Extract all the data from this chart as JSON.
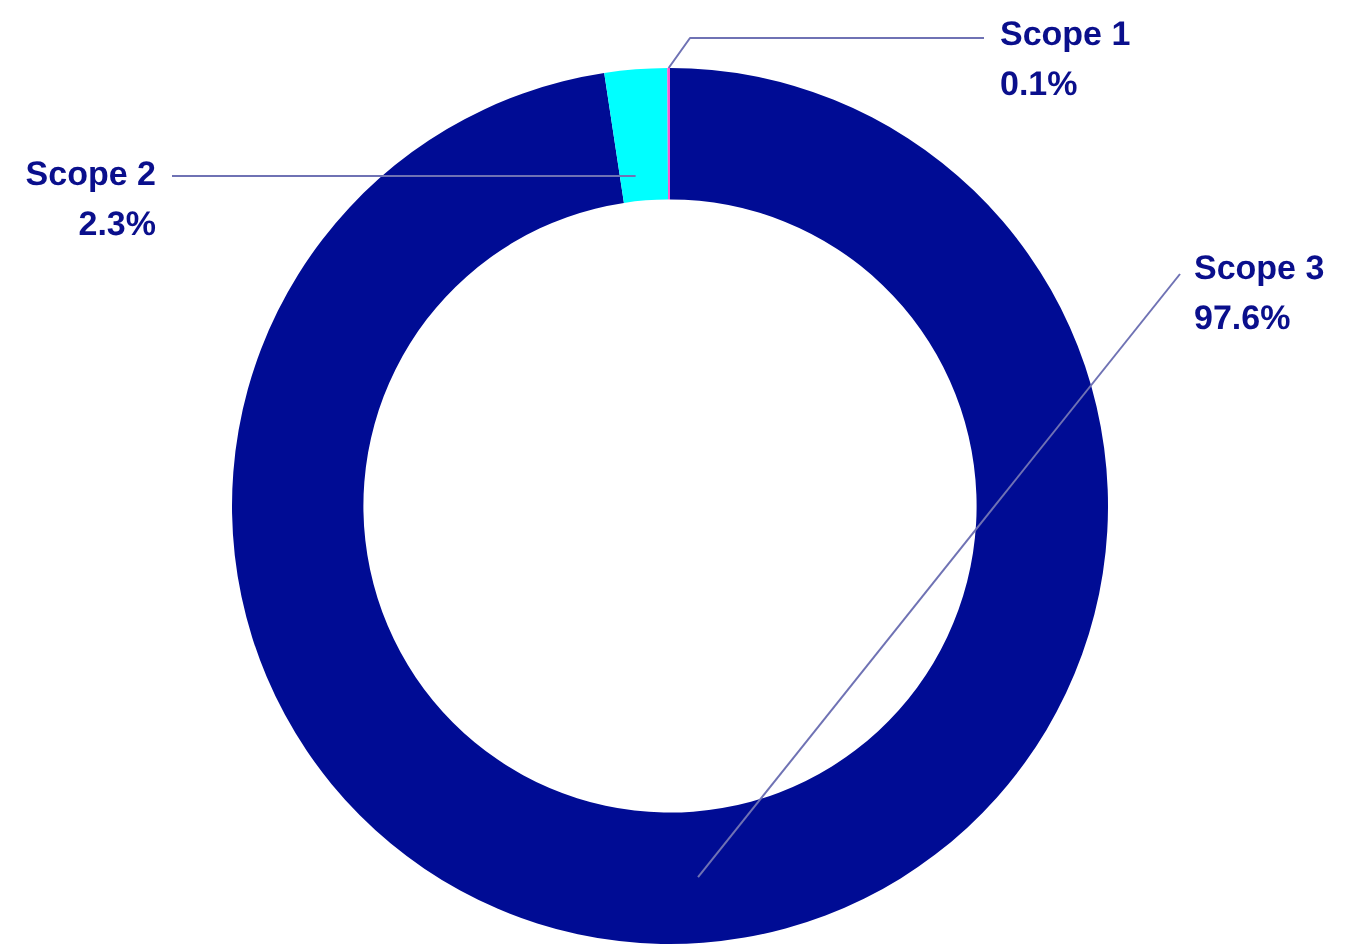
{
  "chart_data": {
    "type": "donut",
    "categories": [
      "Scope 3",
      "Scope 2",
      "Scope 1"
    ],
    "values": [
      97.6,
      2.3,
      0.1
    ],
    "colors": [
      "#000c94",
      "#00ffff",
      "#ff55cc"
    ],
    "value_labels": [
      "97.6%",
      "2.3%",
      "0.1%"
    ]
  }
}
